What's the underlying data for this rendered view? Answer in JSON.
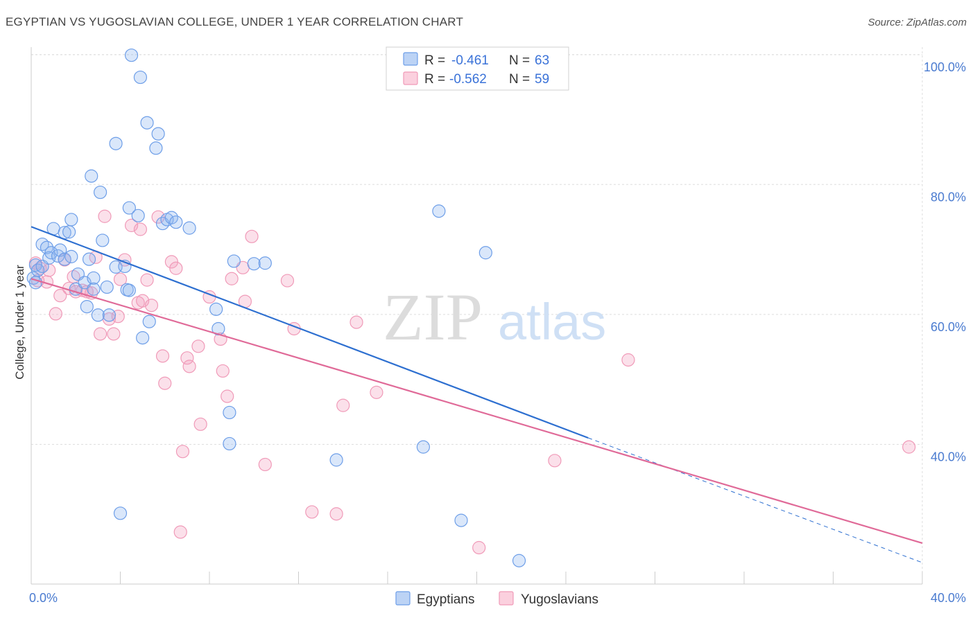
{
  "title": "EGYPTIAN VS YUGOSLAVIAN COLLEGE, UNDER 1 YEAR CORRELATION CHART",
  "source": "Source: ZipAtlas.com",
  "watermark": {
    "zip": "ZIP",
    "atlas": "atlas"
  },
  "legend": {
    "rows": [
      {
        "r_label": "R = ",
        "r_value": "-0.461",
        "n_label": "N = ",
        "n_value": "63"
      },
      {
        "r_label": "R = ",
        "r_value": "-0.562",
        "n_label": "N = ",
        "n_value": "59"
      }
    ]
  },
  "chart_data": {
    "type": "scatter",
    "title": "EGYPTIAN VS YUGOSLAVIAN COLLEGE, UNDER 1 YEAR CORRELATION CHART",
    "xlabel": "",
    "ylabel": "College, Under 1 year",
    "xlim": [
      0,
      40
    ],
    "ylim": [
      18.5,
      102
    ],
    "x_tick_labels": [
      "0.0%",
      "40.0%"
    ],
    "y_ticks": [
      40,
      60,
      80,
      100
    ],
    "y_tick_labels": [
      "40.0%",
      "60.0%",
      "80.0%",
      "100.0%"
    ],
    "grid": true,
    "legend_position": "top-center",
    "colors": {
      "egyptians": "#6d9ee8",
      "yugoslavians": "#f09ab8",
      "egyptians_line": "#2d6fd0",
      "yugoslavians_line": "#e06a98"
    },
    "series": [
      {
        "name": "Egyptians",
        "r": -0.461,
        "n": 63,
        "trend": {
          "x0": 0,
          "y0": 73.5,
          "x1": 25,
          "y1": 41,
          "dash_to_x": 40,
          "dash_to_y": 21.8
        },
        "points": [
          [
            0.1,
            65.6
          ],
          [
            0.2,
            67.6
          ],
          [
            0.3,
            66.8
          ],
          [
            0.5,
            70.8
          ],
          [
            0.5,
            67.4
          ],
          [
            0.7,
            70.3
          ],
          [
            0.8,
            68.7
          ],
          [
            0.9,
            69.5
          ],
          [
            1.0,
            73.2
          ],
          [
            1.2,
            69.0
          ],
          [
            1.3,
            69.9
          ],
          [
            1.5,
            72.6
          ],
          [
            1.5,
            68.5
          ],
          [
            1.7,
            72.7
          ],
          [
            1.8,
            74.6
          ],
          [
            1.8,
            68.9
          ],
          [
            2.0,
            63.9
          ],
          [
            2.1,
            66.2
          ],
          [
            2.4,
            64.9
          ],
          [
            2.5,
            61.2
          ],
          [
            2.6,
            68.5
          ],
          [
            2.7,
            81.3
          ],
          [
            2.8,
            63.9
          ],
          [
            2.8,
            65.6
          ],
          [
            3.0,
            59.9
          ],
          [
            3.1,
            78.8
          ],
          [
            3.2,
            71.4
          ],
          [
            3.4,
            64.2
          ],
          [
            3.5,
            59.9
          ],
          [
            3.8,
            67.3
          ],
          [
            3.8,
            86.3
          ],
          [
            4.0,
            29.4
          ],
          [
            4.2,
            67.4
          ],
          [
            4.3,
            63.8
          ],
          [
            4.4,
            76.4
          ],
          [
            4.4,
            63.7
          ],
          [
            4.5,
            99.9
          ],
          [
            4.8,
            75.2
          ],
          [
            4.9,
            96.5
          ],
          [
            5.0,
            56.4
          ],
          [
            5.2,
            89.5
          ],
          [
            5.3,
            58.9
          ],
          [
            5.6,
            85.6
          ],
          [
            5.7,
            87.8
          ],
          [
            5.9,
            74.0
          ],
          [
            6.1,
            74.6
          ],
          [
            6.3,
            74.9
          ],
          [
            6.5,
            74.2
          ],
          [
            7.1,
            73.3
          ],
          [
            8.3,
            60.8
          ],
          [
            8.4,
            57.8
          ],
          [
            8.9,
            44.9
          ],
          [
            8.9,
            40.1
          ],
          [
            9.1,
            68.2
          ],
          [
            10.0,
            67.8
          ],
          [
            10.5,
            67.9
          ],
          [
            13.7,
            37.6
          ],
          [
            17.6,
            39.6
          ],
          [
            18.3,
            75.9
          ],
          [
            19.3,
            28.3
          ],
          [
            20.4,
            69.5
          ],
          [
            21.9,
            22.1
          ],
          [
            0.2,
            64.9
          ]
        ]
      },
      {
        "name": "Yugoslavians",
        "r": -0.562,
        "n": 59,
        "trend": {
          "x0": 0,
          "y0": 65.5,
          "x1": 40,
          "y1": 24.8
        },
        "points": [
          [
            0.2,
            67.9
          ],
          [
            0.3,
            65.2
          ],
          [
            0.4,
            67.1
          ],
          [
            0.7,
            65.0
          ],
          [
            0.8,
            66.8
          ],
          [
            1.1,
            60.1
          ],
          [
            1.3,
            62.9
          ],
          [
            1.5,
            68.4
          ],
          [
            1.7,
            64.0
          ],
          [
            1.9,
            65.8
          ],
          [
            2.0,
            63.5
          ],
          [
            2.3,
            63.7
          ],
          [
            2.5,
            63.5
          ],
          [
            2.7,
            63.3
          ],
          [
            2.9,
            68.8
          ],
          [
            3.1,
            57.0
          ],
          [
            3.3,
            75.1
          ],
          [
            3.5,
            59.3
          ],
          [
            3.7,
            57.0
          ],
          [
            3.9,
            59.7
          ],
          [
            4.0,
            65.4
          ],
          [
            4.2,
            68.4
          ],
          [
            4.5,
            73.7
          ],
          [
            4.8,
            61.8
          ],
          [
            4.9,
            73.1
          ],
          [
            5.0,
            62.1
          ],
          [
            5.2,
            65.3
          ],
          [
            5.4,
            61.4
          ],
          [
            5.7,
            75.0
          ],
          [
            5.9,
            53.6
          ],
          [
            6.0,
            49.4
          ],
          [
            6.3,
            68.1
          ],
          [
            6.5,
            67.1
          ],
          [
            6.7,
            26.5
          ],
          [
            6.8,
            38.9
          ],
          [
            7.0,
            53.3
          ],
          [
            7.1,
            52.0
          ],
          [
            7.5,
            55.1
          ],
          [
            7.6,
            43.1
          ],
          [
            8.0,
            62.7
          ],
          [
            8.5,
            56.2
          ],
          [
            8.6,
            51.3
          ],
          [
            8.8,
            47.4
          ],
          [
            9.0,
            65.5
          ],
          [
            9.5,
            67.2
          ],
          [
            9.6,
            62.0
          ],
          [
            9.9,
            72.0
          ],
          [
            10.5,
            36.9
          ],
          [
            11.5,
            65.2
          ],
          [
            11.8,
            57.8
          ],
          [
            12.6,
            29.6
          ],
          [
            13.7,
            29.3
          ],
          [
            14.0,
            46.0
          ],
          [
            14.6,
            58.8
          ],
          [
            15.5,
            48.0
          ],
          [
            20.1,
            24.1
          ],
          [
            23.5,
            37.5
          ],
          [
            26.8,
            53.0
          ],
          [
            39.4,
            39.6
          ]
        ]
      }
    ]
  },
  "bottom_legend": {
    "items": [
      {
        "label": "Egyptians"
      },
      {
        "label": "Yugoslavians"
      }
    ]
  }
}
